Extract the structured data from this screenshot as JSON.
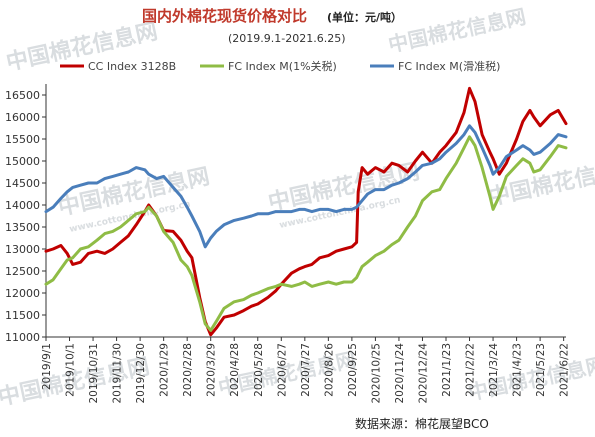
{
  "watermarks": [
    "中国棉花信息网",
    "www.cottonchina.org.cn"
  ],
  "chart_data": {
    "type": "line",
    "title": "国内外棉花现货价格对比",
    "unit": "(单位：元/吨）",
    "subtitle": "(2019.9.1-2021.6.25)",
    "source": "数据来源：棉花展望BCO",
    "ylim": [
      11000,
      16750
    ],
    "y_ticks": [
      11000,
      11500,
      12000,
      12500,
      13000,
      13500,
      14000,
      14500,
      15000,
      15500,
      16000,
      16500
    ],
    "x_range": [
      "2019-09-01",
      "2021-06-25"
    ],
    "x_tick_labels": [
      "2019/9/1",
      "2019/10/1",
      "2019/10/31",
      "2019/11/30",
      "2019/12/30",
      "2020/1/29",
      "2020/2/28",
      "2020/3/29",
      "2020/4/28",
      "2020/5/28",
      "2020/6/27",
      "2020/7/27",
      "2020/8/26",
      "2020/9/25",
      "2020/10/25",
      "2020/11/24",
      "2020/12/24",
      "2021/1/23",
      "2021/2/22",
      "2021/3/24",
      "2021/4/23",
      "2021/5/23",
      "2021/6/22"
    ],
    "x_tick_dates": [
      "2019-09-01",
      "2019-10-01",
      "2019-10-31",
      "2019-11-30",
      "2019-12-30",
      "2020-01-29",
      "2020-02-28",
      "2020-03-29",
      "2020-04-28",
      "2020-05-28",
      "2020-06-27",
      "2020-07-27",
      "2020-08-26",
      "2020-09-25",
      "2020-10-25",
      "2020-11-24",
      "2020-12-24",
      "2021-01-23",
      "2021-02-22",
      "2021-03-24",
      "2021-04-23",
      "2021-05-23",
      "2021-06-22"
    ],
    "grid": false,
    "legend": "top",
    "series": [
      {
        "name": "CC Index 3128B",
        "color": "#c00000",
        "points": [
          [
            "2019-09-01",
            12950
          ],
          [
            "2019-09-10",
            13000
          ],
          [
            "2019-09-20",
            13080
          ],
          [
            "2019-09-28",
            12900
          ],
          [
            "2019-10-05",
            12650
          ],
          [
            "2019-10-15",
            12700
          ],
          [
            "2019-10-25",
            12900
          ],
          [
            "2019-11-05",
            12950
          ],
          [
            "2019-11-15",
            12900
          ],
          [
            "2019-11-25",
            13000
          ],
          [
            "2019-12-05",
            13150
          ],
          [
            "2019-12-15",
            13300
          ],
          [
            "2019-12-25",
            13550
          ],
          [
            "2020-01-05",
            13850
          ],
          [
            "2020-01-10",
            14000
          ],
          [
            "2020-01-20",
            13750
          ],
          [
            "2020-01-29",
            13420
          ],
          [
            "2020-02-10",
            13400
          ],
          [
            "2020-02-20",
            13200
          ],
          [
            "2020-02-28",
            12950
          ],
          [
            "2020-03-05",
            12800
          ],
          [
            "2020-03-15",
            11900
          ],
          [
            "2020-03-22",
            11350
          ],
          [
            "2020-03-29",
            11050
          ],
          [
            "2020-04-05",
            11200
          ],
          [
            "2020-04-15",
            11450
          ],
          [
            "2020-04-28",
            11500
          ],
          [
            "2020-05-10",
            11600
          ],
          [
            "2020-05-20",
            11700
          ],
          [
            "2020-05-28",
            11750
          ],
          [
            "2020-06-10",
            11900
          ],
          [
            "2020-06-20",
            12050
          ],
          [
            "2020-06-27",
            12200
          ],
          [
            "2020-07-10",
            12450
          ],
          [
            "2020-07-20",
            12550
          ],
          [
            "2020-07-27",
            12600
          ],
          [
            "2020-08-05",
            12650
          ],
          [
            "2020-08-15",
            12800
          ],
          [
            "2020-08-26",
            12850
          ],
          [
            "2020-09-05",
            12950
          ],
          [
            "2020-09-15",
            13000
          ],
          [
            "2020-09-25",
            13050
          ],
          [
            "2020-10-01",
            13150
          ],
          [
            "2020-10-03",
            14300
          ],
          [
            "2020-10-08",
            14850
          ],
          [
            "2020-10-15",
            14700
          ],
          [
            "2020-10-25",
            14850
          ],
          [
            "2020-11-05",
            14750
          ],
          [
            "2020-11-15",
            14950
          ],
          [
            "2020-11-24",
            14900
          ],
          [
            "2020-12-05",
            14750
          ],
          [
            "2020-12-15",
            15000
          ],
          [
            "2020-12-24",
            15200
          ],
          [
            "2021-01-05",
            14950
          ],
          [
            "2021-01-15",
            15200
          ],
          [
            "2021-01-23",
            15350
          ],
          [
            "2021-02-05",
            15650
          ],
          [
            "2021-02-15",
            16100
          ],
          [
            "2021-02-22",
            16650
          ],
          [
            "2021-03-01",
            16350
          ],
          [
            "2021-03-10",
            15600
          ],
          [
            "2021-03-20",
            15200
          ],
          [
            "2021-03-24",
            15050
          ],
          [
            "2021-04-01",
            14700
          ],
          [
            "2021-04-10",
            14950
          ],
          [
            "2021-04-23",
            15500
          ],
          [
            "2021-05-01",
            15900
          ],
          [
            "2021-05-10",
            16150
          ],
          [
            "2021-05-15",
            16000
          ],
          [
            "2021-05-23",
            15800
          ],
          [
            "2021-06-05",
            16050
          ],
          [
            "2021-06-15",
            16150
          ],
          [
            "2021-06-25",
            15850
          ]
        ]
      },
      {
        "name": "FC Index M(1%关税)",
        "color": "#8fbc45",
        "points": [
          [
            "2019-09-01",
            12200
          ],
          [
            "2019-09-10",
            12300
          ],
          [
            "2019-09-20",
            12550
          ],
          [
            "2019-09-28",
            12750
          ],
          [
            "2019-10-05",
            12800
          ],
          [
            "2019-10-15",
            13000
          ],
          [
            "2019-10-25",
            13050
          ],
          [
            "2019-11-05",
            13200
          ],
          [
            "2019-11-15",
            13350
          ],
          [
            "2019-11-25",
            13400
          ],
          [
            "2019-12-05",
            13500
          ],
          [
            "2019-12-15",
            13650
          ],
          [
            "2019-12-25",
            13800
          ],
          [
            "2020-01-05",
            13850
          ],
          [
            "2020-01-10",
            13950
          ],
          [
            "2020-01-20",
            13750
          ],
          [
            "2020-01-29",
            13400
          ],
          [
            "2020-02-10",
            13150
          ],
          [
            "2020-02-20",
            12750
          ],
          [
            "2020-02-28",
            12600
          ],
          [
            "2020-03-05",
            12400
          ],
          [
            "2020-03-15",
            11800
          ],
          [
            "2020-03-22",
            11300
          ],
          [
            "2020-03-29",
            11150
          ],
          [
            "2020-04-05",
            11350
          ],
          [
            "2020-04-15",
            11650
          ],
          [
            "2020-04-28",
            11800
          ],
          [
            "2020-05-10",
            11850
          ],
          [
            "2020-05-20",
            11950
          ],
          [
            "2020-05-28",
            12000
          ],
          [
            "2020-06-10",
            12100
          ],
          [
            "2020-06-20",
            12150
          ],
          [
            "2020-06-27",
            12200
          ],
          [
            "2020-07-10",
            12150
          ],
          [
            "2020-07-20",
            12200
          ],
          [
            "2020-07-27",
            12250
          ],
          [
            "2020-08-05",
            12150
          ],
          [
            "2020-08-15",
            12200
          ],
          [
            "2020-08-26",
            12250
          ],
          [
            "2020-09-05",
            12200
          ],
          [
            "2020-09-15",
            12250
          ],
          [
            "2020-09-25",
            12250
          ],
          [
            "2020-10-01",
            12350
          ],
          [
            "2020-10-08",
            12600
          ],
          [
            "2020-10-15",
            12700
          ],
          [
            "2020-10-25",
            12850
          ],
          [
            "2020-11-05",
            12950
          ],
          [
            "2020-11-15",
            13100
          ],
          [
            "2020-11-24",
            13200
          ],
          [
            "2020-12-05",
            13500
          ],
          [
            "2020-12-15",
            13750
          ],
          [
            "2020-12-24",
            14100
          ],
          [
            "2021-01-05",
            14300
          ],
          [
            "2021-01-15",
            14350
          ],
          [
            "2021-01-23",
            14600
          ],
          [
            "2021-02-05",
            14950
          ],
          [
            "2021-02-15",
            15300
          ],
          [
            "2021-02-22",
            15550
          ],
          [
            "2021-03-01",
            15350
          ],
          [
            "2021-03-10",
            14850
          ],
          [
            "2021-03-20",
            14200
          ],
          [
            "2021-03-24",
            13900
          ],
          [
            "2021-04-01",
            14200
          ],
          [
            "2021-04-10",
            14650
          ],
          [
            "2021-04-23",
            14900
          ],
          [
            "2021-05-01",
            15050
          ],
          [
            "2021-05-10",
            14950
          ],
          [
            "2021-05-15",
            14750
          ],
          [
            "2021-05-23",
            14800
          ],
          [
            "2021-06-05",
            15100
          ],
          [
            "2021-06-15",
            15350
          ],
          [
            "2021-06-25",
            15300
          ]
        ]
      },
      {
        "name": "FC Index M(滑准税)",
        "color": "#4a7ebb",
        "points": [
          [
            "2019-09-01",
            13850
          ],
          [
            "2019-09-10",
            13950
          ],
          [
            "2019-09-20",
            14150
          ],
          [
            "2019-09-28",
            14300
          ],
          [
            "2019-10-05",
            14400
          ],
          [
            "2019-10-15",
            14450
          ],
          [
            "2019-10-25",
            14500
          ],
          [
            "2019-11-05",
            14500
          ],
          [
            "2019-11-15",
            14600
          ],
          [
            "2019-11-25",
            14650
          ],
          [
            "2019-12-05",
            14700
          ],
          [
            "2019-12-15",
            14750
          ],
          [
            "2019-12-25",
            14850
          ],
          [
            "2020-01-05",
            14800
          ],
          [
            "2020-01-10",
            14700
          ],
          [
            "2020-01-20",
            14600
          ],
          [
            "2020-01-29",
            14650
          ],
          [
            "2020-02-10",
            14400
          ],
          [
            "2020-02-20",
            14200
          ],
          [
            "2020-02-28",
            13950
          ],
          [
            "2020-03-05",
            13750
          ],
          [
            "2020-03-15",
            13400
          ],
          [
            "2020-03-22",
            13050
          ],
          [
            "2020-03-29",
            13250
          ],
          [
            "2020-04-05",
            13400
          ],
          [
            "2020-04-15",
            13550
          ],
          [
            "2020-04-28",
            13650
          ],
          [
            "2020-05-10",
            13700
          ],
          [
            "2020-05-20",
            13750
          ],
          [
            "2020-05-28",
            13800
          ],
          [
            "2020-06-10",
            13800
          ],
          [
            "2020-06-20",
            13850
          ],
          [
            "2020-06-27",
            13850
          ],
          [
            "2020-07-10",
            13850
          ],
          [
            "2020-07-20",
            13900
          ],
          [
            "2020-07-27",
            13900
          ],
          [
            "2020-08-05",
            13850
          ],
          [
            "2020-08-15",
            13900
          ],
          [
            "2020-08-26",
            13900
          ],
          [
            "2020-09-05",
            13850
          ],
          [
            "2020-09-15",
            13900
          ],
          [
            "2020-09-25",
            13900
          ],
          [
            "2020-10-01",
            13950
          ],
          [
            "2020-10-08",
            14100
          ],
          [
            "2020-10-15",
            14250
          ],
          [
            "2020-10-25",
            14350
          ],
          [
            "2020-11-05",
            14350
          ],
          [
            "2020-11-15",
            14450
          ],
          [
            "2020-11-24",
            14500
          ],
          [
            "2020-12-05",
            14600
          ],
          [
            "2020-12-15",
            14750
          ],
          [
            "2020-12-24",
            14900
          ],
          [
            "2021-01-05",
            14950
          ],
          [
            "2021-01-15",
            15050
          ],
          [
            "2021-01-23",
            15200
          ],
          [
            "2021-02-05",
            15400
          ],
          [
            "2021-02-15",
            15600
          ],
          [
            "2021-02-22",
            15800
          ],
          [
            "2021-03-01",
            15650
          ],
          [
            "2021-03-10",
            15300
          ],
          [
            "2021-03-20",
            14900
          ],
          [
            "2021-03-24",
            14700
          ],
          [
            "2021-04-01",
            14850
          ],
          [
            "2021-04-10",
            15100
          ],
          [
            "2021-04-23",
            15250
          ],
          [
            "2021-05-01",
            15350
          ],
          [
            "2021-05-10",
            15250
          ],
          [
            "2021-05-15",
            15150
          ],
          [
            "2021-05-23",
            15200
          ],
          [
            "2021-06-05",
            15400
          ],
          [
            "2021-06-15",
            15600
          ],
          [
            "2021-06-25",
            15550
          ]
        ]
      }
    ]
  }
}
